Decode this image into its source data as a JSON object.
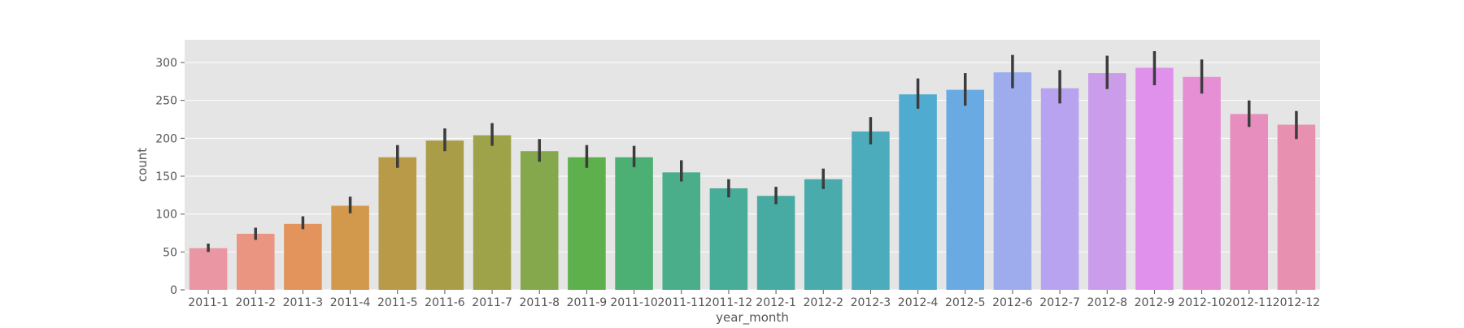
{
  "chart_data": {
    "type": "bar",
    "xlabel": "year_month",
    "ylabel": "count",
    "ylim": [
      0,
      330
    ],
    "yticks": [
      0,
      50,
      100,
      150,
      200,
      250,
      300
    ],
    "grid": true,
    "categories": [
      "2011-1",
      "2011-2",
      "2011-3",
      "2011-4",
      "2011-5",
      "2011-6",
      "2011-7",
      "2011-8",
      "2011-9",
      "2011-10",
      "2011-11",
      "2011-12",
      "2012-1",
      "2012-2",
      "2012-3",
      "2012-4",
      "2012-5",
      "2012-6",
      "2012-7",
      "2012-8",
      "2012-9",
      "2012-10",
      "2012-11",
      "2012-12"
    ],
    "values": [
      55,
      74,
      87,
      111,
      175,
      197,
      204,
      183,
      175,
      175,
      155,
      134,
      124,
      146,
      209,
      258,
      264,
      287,
      266,
      286,
      293,
      281,
      232,
      218
    ],
    "error_low": [
      50,
      66,
      80,
      101,
      161,
      183,
      190,
      169,
      161,
      162,
      143,
      122,
      113,
      133,
      192,
      239,
      243,
      266,
      246,
      265,
      270,
      259,
      215,
      199
    ],
    "error_high": [
      61,
      82,
      97,
      123,
      191,
      213,
      220,
      199,
      191,
      190,
      171,
      146,
      136,
      160,
      228,
      279,
      286,
      310,
      290,
      309,
      315,
      304,
      250,
      236
    ],
    "colors": [
      "#ea96a3",
      "#e99581",
      "#e2945c",
      "#d2994d",
      "#b99a49",
      "#aa9d48",
      "#9ea349",
      "#85a84c",
      "#5db04b",
      "#4caf74",
      "#4aae8a",
      "#47ac98",
      "#48aba3",
      "#4aabad",
      "#4dacbc",
      "#4facd0",
      "#6aaae3",
      "#9eacee",
      "#b8a3f0",
      "#cb9cea",
      "#e091eb",
      "#e78fd5",
      "#e88ebf",
      "#e890b0"
    ],
    "error_color": "#3c3c3c",
    "plot_background": "#e5e5e5",
    "grid_color": "#ffffff"
  }
}
